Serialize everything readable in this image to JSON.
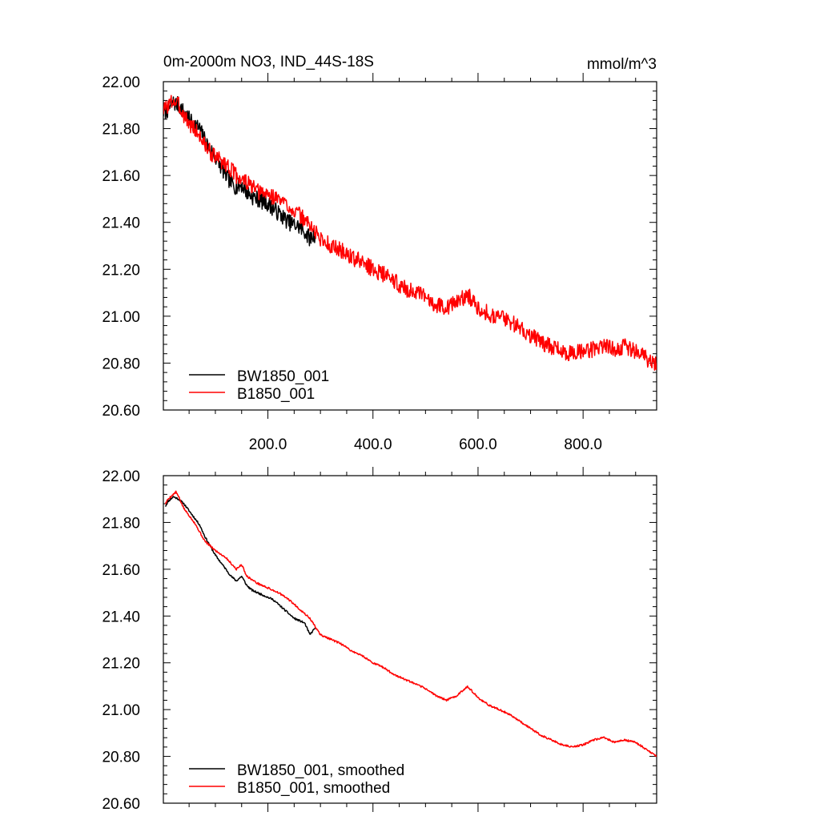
{
  "chart_data": [
    {
      "type": "line",
      "title": "0m-2000m NO3, IND_44S-18S",
      "units": "mmol/m^3",
      "xlim": [
        1,
        940
      ],
      "ylim": [
        20.6,
        22.0
      ],
      "yticks": [
        20.6,
        20.8,
        21.0,
        21.2,
        21.4,
        21.6,
        21.8,
        22.0
      ],
      "ytick_labels": [
        "20.60",
        "20.80",
        "21.00",
        "21.20",
        "21.40",
        "21.60",
        "21.80",
        "22.00"
      ],
      "xticks": [
        200,
        400,
        600,
        800
      ],
      "xtick_labels": [
        "200.0",
        "400.0",
        "600.0",
        "800.0"
      ],
      "legend": {
        "position": "bottom-left",
        "entries": [
          "BW1850_001",
          "B1850_001"
        ]
      },
      "series": [
        {
          "name": "BW1850_001",
          "color": "#000000",
          "noise": 0.035,
          "seed": 7,
          "x": [
            1,
            10,
            20,
            30,
            40,
            50,
            60,
            70,
            80,
            90,
            100,
            110,
            120,
            130,
            140,
            150,
            160,
            170,
            180,
            190,
            200,
            210,
            220,
            230,
            240,
            250,
            260,
            270,
            280,
            290
          ],
          "y": [
            21.87,
            21.88,
            21.91,
            21.9,
            21.87,
            21.84,
            21.82,
            21.8,
            21.75,
            21.71,
            21.68,
            21.64,
            21.6,
            21.57,
            21.55,
            21.56,
            21.53,
            21.51,
            21.5,
            21.49,
            21.48,
            21.46,
            21.44,
            21.42,
            21.4,
            21.39,
            21.38,
            21.36,
            21.33,
            21.35
          ]
        },
        {
          "name": "B1850_001",
          "color": "#ff0000",
          "noise": 0.035,
          "seed": 3,
          "x": [
            1,
            10,
            20,
            30,
            40,
            50,
            60,
            70,
            80,
            90,
            100,
            120,
            140,
            160,
            180,
            200,
            220,
            240,
            260,
            280,
            300,
            320,
            340,
            360,
            380,
            400,
            420,
            440,
            460,
            480,
            500,
            520,
            540,
            560,
            580,
            600,
            620,
            640,
            660,
            680,
            700,
            720,
            740,
            760,
            780,
            800,
            820,
            840,
            860,
            880,
            900,
            920,
            940
          ],
          "y": [
            21.88,
            21.9,
            21.92,
            21.9,
            21.86,
            21.82,
            21.8,
            21.77,
            21.73,
            21.7,
            21.68,
            21.65,
            21.6,
            21.57,
            21.53,
            21.52,
            21.5,
            21.47,
            21.43,
            21.39,
            21.33,
            21.3,
            21.28,
            21.25,
            21.23,
            21.2,
            21.18,
            21.15,
            21.12,
            21.1,
            21.08,
            21.05,
            21.04,
            21.06,
            21.09,
            21.04,
            21.01,
            21.0,
            20.98,
            20.95,
            20.92,
            20.89,
            20.87,
            20.85,
            20.84,
            20.85,
            20.86,
            20.88,
            20.86,
            20.87,
            20.85,
            20.82,
            20.8
          ]
        }
      ]
    },
    {
      "type": "line",
      "title": "",
      "xlim": [
        1,
        940
      ],
      "ylim": [
        20.6,
        22.0
      ],
      "yticks": [
        20.6,
        20.8,
        21.0,
        21.2,
        21.4,
        21.6,
        21.8,
        22.0
      ],
      "ytick_labels": [
        "20.60",
        "20.80",
        "21.00",
        "21.20",
        "21.40",
        "21.60",
        "21.80",
        "22.00"
      ],
      "xticks": [
        200,
        400,
        600,
        800
      ],
      "xtick_labels": [],
      "legend": {
        "position": "bottom-left",
        "entries": [
          "BW1850_001, smoothed",
          "B1850_001, smoothed"
        ]
      },
      "series": [
        {
          "name": "BW1850_001, smoothed",
          "color": "#000000",
          "noise": 0.004,
          "seed": 11,
          "x": [
            5,
            10,
            20,
            30,
            40,
            50,
            60,
            70,
            80,
            90,
            100,
            110,
            120,
            130,
            140,
            150,
            160,
            170,
            180,
            190,
            200,
            210,
            220,
            230,
            240,
            250,
            260,
            270,
            280,
            290
          ],
          "y": [
            21.87,
            21.89,
            21.91,
            21.9,
            21.88,
            21.85,
            21.82,
            21.79,
            21.74,
            21.7,
            21.66,
            21.63,
            21.6,
            21.57,
            21.55,
            21.57,
            21.53,
            21.51,
            21.5,
            21.49,
            21.48,
            21.47,
            21.45,
            21.43,
            21.41,
            21.39,
            21.38,
            21.37,
            21.32,
            21.35
          ]
        },
        {
          "name": "B1850_001, smoothed",
          "color": "#ff0000",
          "noise": 0.004,
          "seed": 5,
          "x": [
            5,
            10,
            20,
            25,
            30,
            40,
            50,
            60,
            70,
            80,
            90,
            100,
            120,
            140,
            150,
            160,
            180,
            200,
            220,
            240,
            260,
            280,
            300,
            320,
            340,
            360,
            380,
            400,
            420,
            440,
            460,
            480,
            500,
            520,
            540,
            560,
            580,
            600,
            620,
            640,
            660,
            680,
            700,
            720,
            740,
            760,
            780,
            800,
            820,
            840,
            860,
            880,
            900,
            920,
            940
          ],
          "y": [
            21.88,
            21.9,
            21.92,
            21.93,
            21.91,
            21.86,
            21.83,
            21.8,
            21.76,
            21.72,
            21.7,
            21.68,
            21.65,
            21.6,
            21.62,
            21.57,
            21.54,
            21.52,
            21.5,
            21.47,
            21.43,
            21.39,
            21.32,
            21.3,
            21.28,
            21.25,
            21.23,
            21.2,
            21.18,
            21.15,
            21.13,
            21.11,
            21.09,
            21.06,
            21.04,
            21.06,
            21.1,
            21.05,
            21.02,
            21.0,
            20.98,
            20.95,
            20.92,
            20.89,
            20.87,
            20.85,
            20.84,
            20.85,
            20.87,
            20.88,
            20.86,
            20.87,
            20.86,
            20.83,
            20.8
          ]
        }
      ]
    }
  ]
}
